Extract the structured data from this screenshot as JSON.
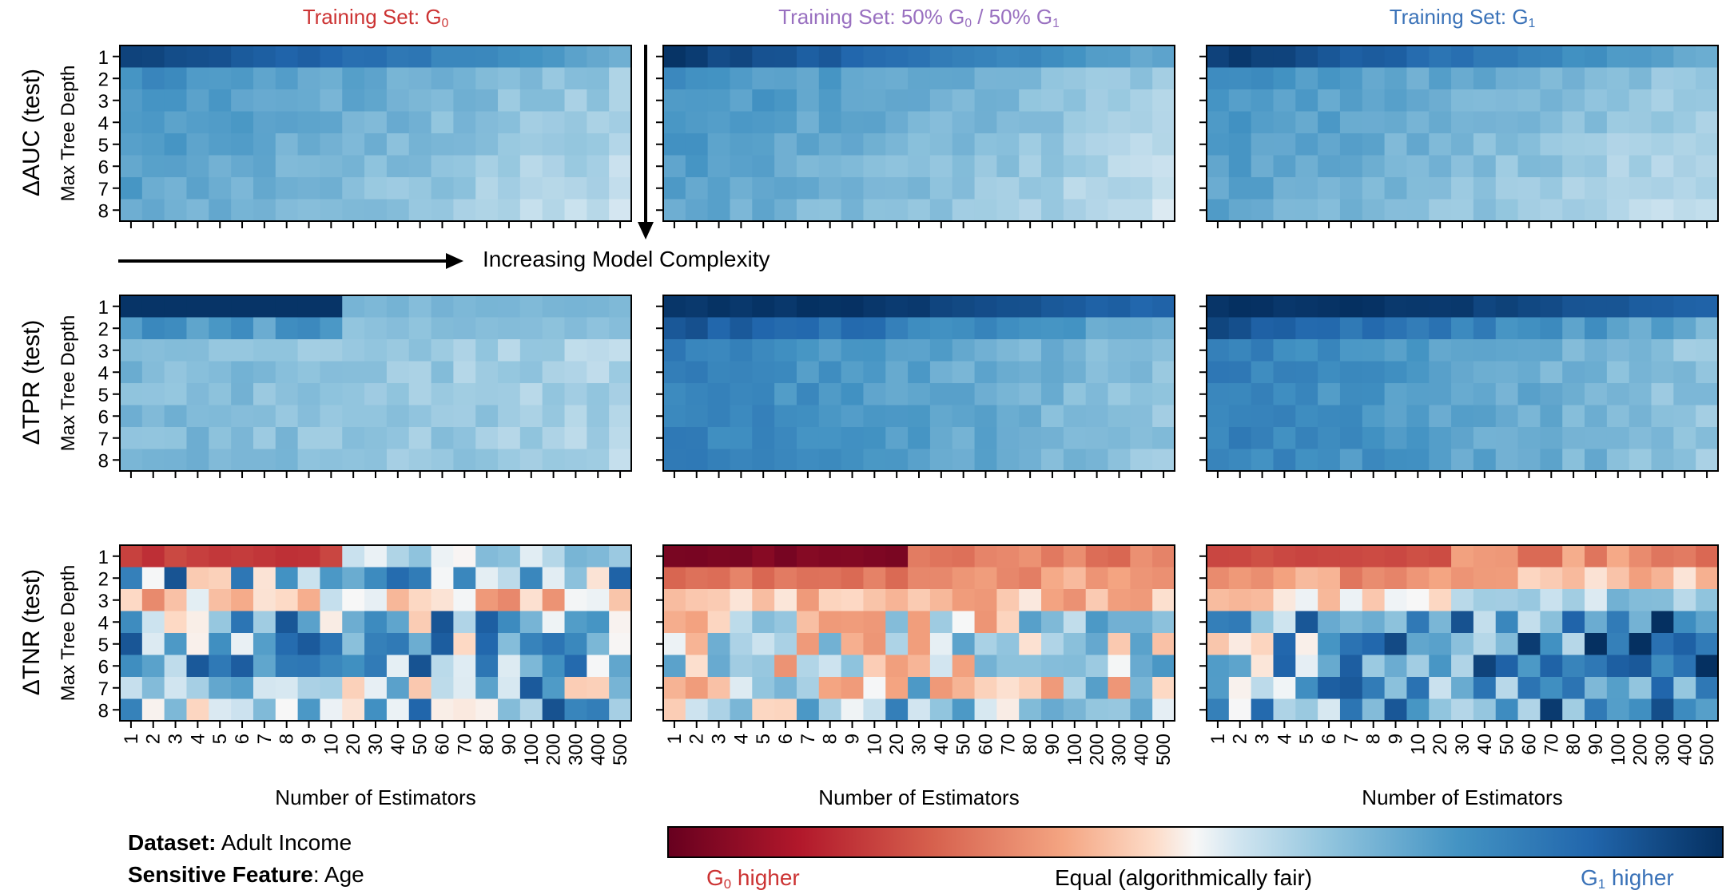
{
  "chart_data": {
    "type": "heatmap",
    "columns": [
      {
        "title_main": "Training Set: G",
        "title_sub": "0",
        "title_rest": "",
        "color": "#cc3333"
      },
      {
        "title_main": "Training Set: 50% G",
        "title_sub": "0",
        "title_rest": " / 50% G",
        "title_sub2": "1",
        "color": "#9970c0"
      },
      {
        "title_main": "Training Set: G",
        "title_sub": "1",
        "title_rest": "",
        "color": "#3a72b8"
      }
    ],
    "rows": [
      {
        "label": "ΔAUC (test)"
      },
      {
        "label": "ΔTPR (test)"
      },
      {
        "label": "ΔTNR (test)"
      }
    ],
    "ylabel": "Max Tree Depth",
    "xlabel": "Number of Estimators",
    "y_ticks": [
      "1",
      "2",
      "3",
      "4",
      "5",
      "6",
      "7",
      "8"
    ],
    "x_ticks": [
      "1",
      "2",
      "3",
      "4",
      "5",
      "6",
      "7",
      "8",
      "9",
      "10",
      "20",
      "30",
      "40",
      "50",
      "60",
      "70",
      "80",
      "90",
      "100",
      "200",
      "300",
      "400",
      "500"
    ],
    "complexity_label": "Increasing Model Complexity",
    "colorbar": {
      "range": [
        -1,
        1
      ],
      "left_label": "G",
      "left_sub": "0",
      "left_rest": " higher",
      "center_label": "Equal (algorithmically fair)",
      "right_label": "G",
      "right_sub": "1",
      "right_rest": " higher",
      "left_color": "#cc3333",
      "right_color": "#3a72b8"
    },
    "dataset": {
      "label": "Dataset:",
      "value": "Adult Income"
    },
    "sensitive": {
      "label": "Sensitive Feature",
      "value": ": Age"
    }
  }
}
